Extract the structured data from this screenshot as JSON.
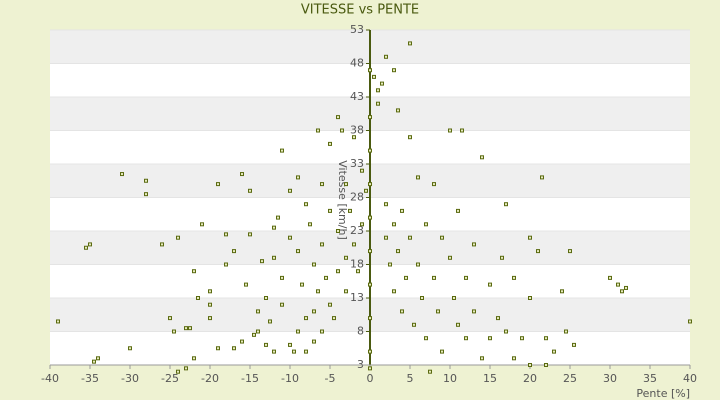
{
  "chart_data": {
    "type": "scatter",
    "title": "VITESSE vs PENTE",
    "xlabel": "Pente [%]",
    "ylabel": "Vitesse [km/h]",
    "color": "#5a6a10",
    "xlim": [
      -40,
      40
    ],
    "xticks": [
      -40,
      -35,
      -30,
      -25,
      -20,
      -15,
      -10,
      -5,
      0,
      5,
      10,
      15,
      20,
      25,
      30,
      35,
      40
    ],
    "ylim": [
      3,
      53
    ],
    "yticks": [
      3,
      8,
      13,
      18,
      23,
      28,
      33,
      38,
      43,
      48,
      53
    ],
    "grid": true,
    "x": [
      -39,
      -34.5,
      -34,
      -35.5,
      -35,
      -31,
      -30,
      -28,
      -28,
      -26,
      -25,
      -24.5,
      -24,
      -24,
      -23,
      -23,
      -22.5,
      -22,
      -22,
      -21.5,
      -21,
      -20,
      -20,
      -20,
      -19,
      -19,
      -18,
      -18,
      -17,
      -17,
      -16,
      -16,
      -15.5,
      -15,
      -15,
      -14.5,
      -14,
      -14,
      -13.5,
      -13,
      -13,
      -12.5,
      -12,
      -12,
      -12,
      -11.5,
      -11,
      -11,
      -11,
      -10,
      -10,
      -10,
      -9.5,
      -9,
      -9,
      -9,
      -8.5,
      -8,
      -8,
      -8,
      -7.5,
      -7,
      -7,
      -7,
      -6.5,
      -6.5,
      -6,
      -6,
      -6,
      -5.5,
      -5,
      -5,
      -5,
      -4.5,
      -4,
      -4,
      -4,
      -3.5,
      -3,
      -3,
      -3,
      -2.5,
      -2,
      -2,
      -1.5,
      -1,
      -1,
      -0.5,
      0,
      0,
      0,
      0,
      0,
      0,
      0,
      0,
      0,
      0,
      0.5,
      1,
      1.5,
      2,
      1,
      2,
      2,
      2.5,
      3,
      3,
      3,
      3.5,
      3.5,
      4,
      4,
      4.5,
      5,
      5,
      5,
      5.5,
      6,
      6,
      6.5,
      7,
      7,
      7.5,
      8,
      8,
      8.5,
      9,
      9,
      10,
      10,
      10.5,
      11,
      11,
      11.5,
      12,
      12,
      13,
      13,
      14,
      14,
      15,
      15,
      16,
      16.5,
      17,
      17,
      18,
      18,
      19,
      20,
      20,
      20,
      21,
      21.5,
      22,
      22,
      23,
      24,
      24.5,
      25,
      25.5,
      30,
      31,
      31.5,
      32,
      40
    ],
    "values": [
      9.5,
      3.5,
      4,
      20.5,
      21,
      31.5,
      5.5,
      28.5,
      30.5,
      21,
      10,
      8,
      2,
      22,
      8.5,
      2.5,
      8.5,
      4,
      17,
      13,
      24,
      14,
      12,
      10,
      30,
      5.5,
      22.5,
      18,
      5.5,
      20,
      31.5,
      6.5,
      15,
      22.5,
      29,
      7.5,
      11,
      8,
      18.5,
      13,
      6,
      9.5,
      23.5,
      19,
      5,
      25,
      35,
      16,
      12,
      29,
      22,
      6,
      5,
      31,
      20,
      8,
      15,
      27,
      10,
      5,
      24,
      18,
      11,
      6.5,
      38,
      14,
      30,
      21,
      8,
      16,
      36,
      26,
      12,
      10,
      40,
      23,
      17,
      38,
      30,
      19,
      14,
      26,
      21,
      37,
      17,
      24,
      32,
      29,
      5,
      10,
      15,
      20,
      25,
      30,
      35,
      40,
      2.5,
      47,
      46,
      44,
      45,
      49,
      42,
      27,
      22,
      18,
      47,
      24,
      14,
      41,
      20,
      11,
      26,
      16,
      51,
      37,
      22,
      9,
      31,
      18,
      13,
      24,
      7,
      2,
      30,
      16,
      11,
      22,
      5,
      38,
      19,
      13,
      9,
      26,
      38,
      16,
      7,
      21,
      11,
      34,
      4,
      15,
      7,
      10,
      19,
      27,
      8,
      16,
      4,
      7,
      13,
      22,
      3,
      20,
      31,
      7,
      3,
      5,
      14,
      8,
      20,
      6,
      16,
      15,
      14,
      14.5,
      9.5
    ]
  }
}
